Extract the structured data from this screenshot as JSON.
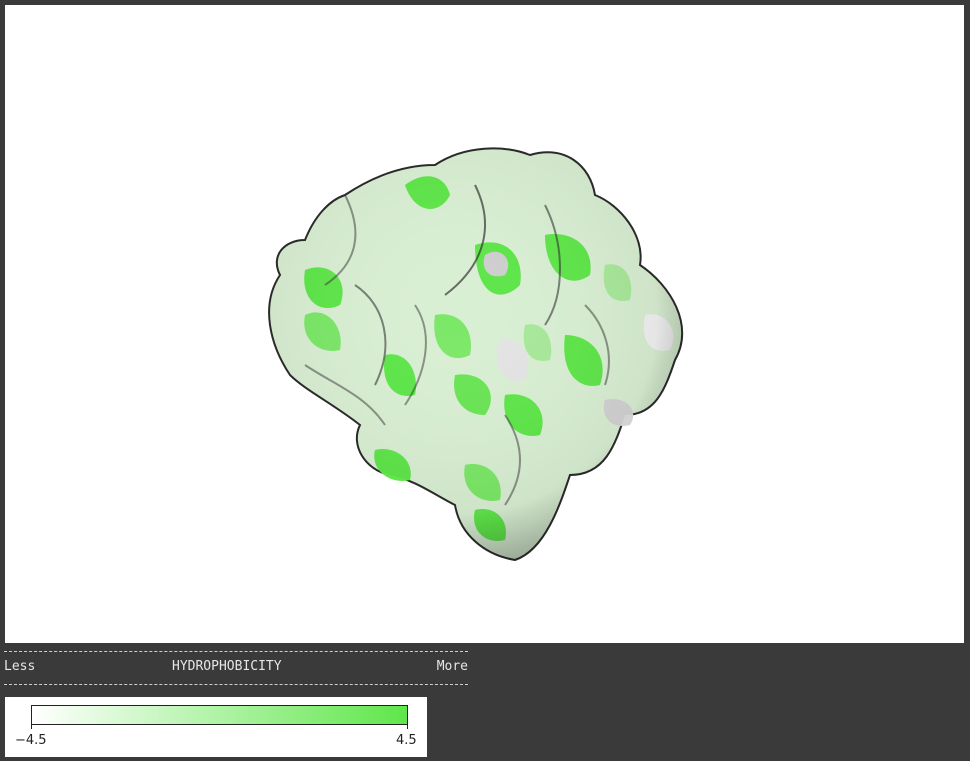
{
  "legend": {
    "less_label": "Less",
    "title": "HYDROPHOBICITY",
    "more_label": "More",
    "min_value": "−4.5",
    "max_value": "4.5",
    "min_color": "#ffffff",
    "max_color": "#5fe64a"
  },
  "viewer": {
    "background_color": "#ffffff",
    "surface_colors": [
      "#ffffff",
      "#d8f2d2",
      "#a9e99b",
      "#5fe64a",
      "#c8c8c8"
    ]
  }
}
